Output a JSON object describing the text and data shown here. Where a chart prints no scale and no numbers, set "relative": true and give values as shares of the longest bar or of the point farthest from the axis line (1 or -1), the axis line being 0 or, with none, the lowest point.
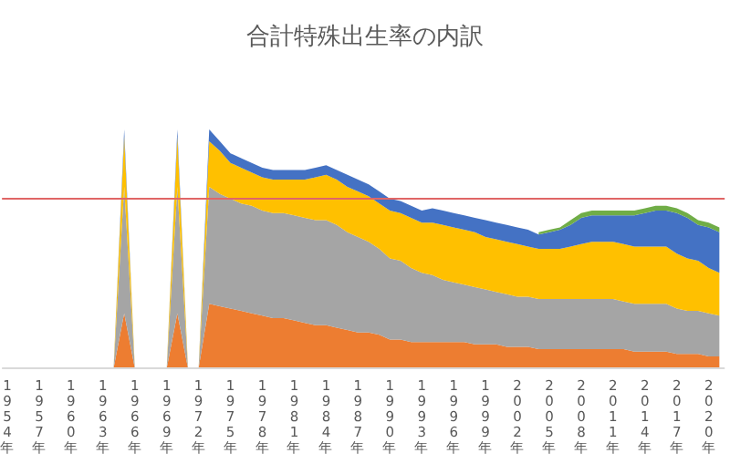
{
  "chart_data": {
    "type": "area",
    "title": "合計特殊出生率の内訳",
    "stacked": true,
    "relative": true,
    "categories": [
      "1954年",
      null,
      null,
      "1957年",
      null,
      null,
      "1960年",
      null,
      null,
      "1963年",
      null,
      null,
      "1966年",
      null,
      null,
      "1969年",
      null,
      null,
      "1972年",
      null,
      null,
      "1975年",
      null,
      null,
      "1978年",
      null,
      null,
      "1981年",
      null,
      null,
      "1984年",
      null,
      null,
      "1987年",
      null,
      null,
      "1990年",
      null,
      null,
      "1993年",
      null,
      null,
      "1996年",
      null,
      null,
      "1999年",
      null,
      null,
      "2002年",
      null,
      null,
      "2005年",
      null,
      null,
      "2008年",
      null,
      null,
      "2011年",
      null,
      null,
      "2014年",
      null,
      null,
      "2017年",
      null,
      null,
      "2020年",
      null
    ],
    "series": [
      {
        "color": "#ed7d31",
        "values": [
          0,
          0,
          0,
          0,
          0,
          0,
          0,
          0,
          0,
          0,
          0,
          0.23,
          0,
          0,
          0,
          0,
          0.23,
          0,
          0,
          0.27,
          0.26,
          0.25,
          0.24,
          0.23,
          0.22,
          0.21,
          0.21,
          0.2,
          0.19,
          0.18,
          0.18,
          0.17,
          0.16,
          0.15,
          0.15,
          0.14,
          0.12,
          0.12,
          0.11,
          0.11,
          0.11,
          0.11,
          0.11,
          0.11,
          0.1,
          0.1,
          0.1,
          0.09,
          0.09,
          0.09,
          0.08,
          0.08,
          0.08,
          0.08,
          0.08,
          0.08,
          0.08,
          0.08,
          0.08,
          0.07,
          0.07,
          0.07,
          0.07,
          0.06,
          0.06,
          0.06,
          0.05,
          0.05
        ]
      },
      {
        "color": "#a5a5a5",
        "values": [
          0,
          0,
          0,
          0,
          0,
          0,
          0,
          0,
          0,
          0,
          0,
          0.53,
          0,
          0,
          0,
          0,
          0.53,
          0,
          0,
          0.49,
          0.47,
          0.46,
          0.45,
          0.45,
          0.44,
          0.44,
          0.44,
          0.44,
          0.44,
          0.44,
          0.44,
          0.43,
          0.41,
          0.4,
          0.38,
          0.36,
          0.34,
          0.33,
          0.31,
          0.29,
          0.28,
          0.26,
          0.25,
          0.24,
          0.24,
          0.23,
          0.22,
          0.22,
          0.21,
          0.21,
          0.21,
          0.21,
          0.21,
          0.21,
          0.21,
          0.21,
          0.21,
          0.21,
          0.2,
          0.2,
          0.2,
          0.2,
          0.2,
          0.19,
          0.18,
          0.18,
          0.18,
          0.17
        ]
      },
      {
        "color": "#ffc000",
        "values": [
          0,
          0,
          0,
          0,
          0,
          0,
          0,
          0,
          0,
          0,
          0,
          0.21,
          0,
          0,
          0,
          0,
          0.21,
          0,
          0,
          0.19,
          0.18,
          0.15,
          0.15,
          0.14,
          0.14,
          0.14,
          0.14,
          0.15,
          0.16,
          0.18,
          0.19,
          0.19,
          0.19,
          0.19,
          0.19,
          0.19,
          0.2,
          0.2,
          0.21,
          0.21,
          0.22,
          0.23,
          0.23,
          0.23,
          0.23,
          0.22,
          0.22,
          0.22,
          0.22,
          0.21,
          0.21,
          0.21,
          0.21,
          0.22,
          0.23,
          0.24,
          0.24,
          0.24,
          0.24,
          0.24,
          0.24,
          0.24,
          0.24,
          0.23,
          0.22,
          0.21,
          0.19,
          0.18
        ]
      },
      {
        "color": "#4472c4",
        "values": [
          0,
          0,
          0,
          0,
          0,
          0,
          0,
          0,
          0,
          0,
          0,
          0.03,
          0,
          0,
          0,
          0,
          0.03,
          0,
          0,
          0.05,
          0.04,
          0.04,
          0.04,
          0.04,
          0.04,
          0.04,
          0.04,
          0.04,
          0.04,
          0.04,
          0.04,
          0.04,
          0.05,
          0.05,
          0.05,
          0.05,
          0.05,
          0.05,
          0.05,
          0.05,
          0.06,
          0.06,
          0.06,
          0.06,
          0.06,
          0.07,
          0.07,
          0.07,
          0.07,
          0.07,
          0.06,
          0.07,
          0.08,
          0.09,
          0.11,
          0.11,
          0.11,
          0.11,
          0.12,
          0.13,
          0.14,
          0.15,
          0.15,
          0.17,
          0.17,
          0.15,
          0.17,
          0.17
        ]
      },
      {
        "color": "#70ad47",
        "values": [
          null,
          null,
          null,
          null,
          null,
          null,
          null,
          null,
          null,
          null,
          null,
          null,
          null,
          null,
          null,
          null,
          null,
          null,
          null,
          null,
          null,
          null,
          null,
          null,
          null,
          null,
          null,
          null,
          null,
          null,
          null,
          null,
          null,
          null,
          null,
          null,
          null,
          null,
          null,
          null,
          null,
          null,
          null,
          null,
          null,
          null,
          null,
          null,
          null,
          null,
          0.01,
          0.01,
          0.01,
          0.02,
          0.02,
          0.02,
          0.02,
          0.02,
          0.02,
          0.02,
          0.02,
          0.02,
          0.02,
          0.02,
          0.02,
          0.02,
          0.02,
          0.02
        ]
      }
    ],
    "ref_lines": [
      {
        "axis": "y",
        "value": 0.71,
        "color": "#e06666"
      }
    ]
  }
}
